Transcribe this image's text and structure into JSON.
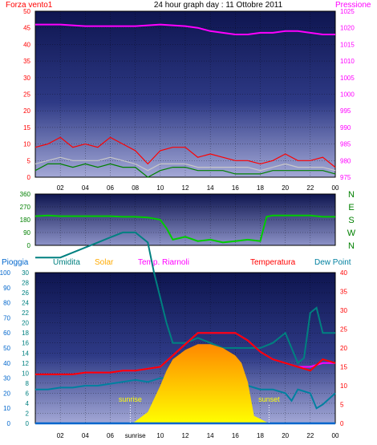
{
  "title": "24 hour graph day : 11 Ottobre 2011",
  "colors": {
    "wind": "#ff0000",
    "gust": "#ff0000",
    "wind_avg": "#c8c8c8",
    "wind_low": "#008000",
    "pressure": "#ff00ff",
    "direction": "#00cc00",
    "rain": "#0066cc",
    "humidity": "#008080",
    "solar": "#ffaa00",
    "apparent": "#ff00ff",
    "temperature": "#ff0000",
    "dewpoint": "#0080a0",
    "grid": "#000000"
  },
  "chart_data": [
    {
      "type": "line",
      "left_label": "Forza vento1",
      "right_label": "Pressione",
      "x_ticks": [
        "02",
        "04",
        "06",
        "08",
        "10",
        "12",
        "14",
        "16",
        "18",
        "20",
        "22",
        "00"
      ],
      "left_ticks": [
        "0",
        "5",
        "10",
        "15",
        "20",
        "25",
        "30",
        "35",
        "40",
        "45",
        "50"
      ],
      "right_ticks": [
        "975",
        "980",
        "985",
        "990",
        "995",
        "1000",
        "1005",
        "1010",
        "1015",
        "1020",
        "1025"
      ],
      "left_ylim": [
        0,
        50
      ],
      "right_ylim": [
        975,
        1025
      ],
      "series": [
        {
          "key": "pressure",
          "x": [
            0,
            2,
            4,
            6,
            8,
            10,
            12,
            13,
            14,
            15,
            16,
            17,
            18,
            19,
            20,
            21,
            22,
            23,
            24
          ],
          "values": [
            1021,
            1021,
            1020.5,
            1020.5,
            1020.5,
            1021,
            1020.5,
            1020,
            1019,
            1018.5,
            1018,
            1018,
            1018.5,
            1018.5,
            1019,
            1019,
            1018.5,
            1018,
            1018
          ]
        },
        {
          "key": "gust",
          "x": [
            0,
            1,
            2,
            3,
            4,
            5,
            6,
            7,
            8,
            9,
            10,
            11,
            12,
            13,
            14,
            15,
            16,
            17,
            18,
            19,
            20,
            21,
            22,
            23,
            24
          ],
          "values": [
            9,
            10,
            12,
            9,
            10,
            9,
            12,
            10,
            8,
            4,
            8,
            9,
            9,
            6,
            7,
            6,
            5,
            5,
            4,
            5,
            7,
            5,
            5,
            6,
            3
          ]
        },
        {
          "key": "wind_avg",
          "x": [
            0,
            1,
            2,
            3,
            4,
            5,
            6,
            7,
            8,
            9,
            10,
            11,
            12,
            13,
            14,
            15,
            16,
            17,
            18,
            19,
            20,
            21,
            22,
            23,
            24
          ],
          "values": [
            4,
            5,
            6,
            5,
            5,
            5,
            6,
            5,
            4,
            2,
            4,
            4,
            4,
            3,
            3,
            3,
            3,
            3,
            2,
            3,
            4,
            3,
            3,
            3,
            2
          ]
        },
        {
          "key": "wind_low",
          "x": [
            0,
            1,
            2,
            3,
            4,
            5,
            6,
            7,
            8,
            9,
            10,
            11,
            12,
            13,
            14,
            15,
            16,
            17,
            18,
            19,
            20,
            21,
            22,
            23,
            24
          ],
          "values": [
            2,
            4,
            4,
            3,
            4,
            3,
            4,
            3,
            3,
            0,
            2,
            3,
            3,
            2,
            2,
            2,
            1,
            1,
            1,
            2,
            2,
            2,
            2,
            2,
            1
          ]
        }
      ]
    },
    {
      "type": "line",
      "left_ticks": [
        "0",
        "90",
        "180",
        "270",
        "360"
      ],
      "right_ticks": [
        "N",
        "W",
        "S",
        "E",
        "N"
      ],
      "ylim": [
        0,
        360
      ],
      "series": [
        {
          "key": "direction",
          "x": [
            0,
            1,
            2,
            3,
            4,
            5,
            6,
            7,
            8,
            9,
            10,
            10.5,
            11,
            11.5,
            12,
            13,
            14,
            15,
            16,
            17,
            18,
            18.5,
            19,
            20,
            21,
            22,
            23,
            24
          ],
          "values": [
            205,
            210,
            205,
            205,
            205,
            205,
            205,
            200,
            200,
            195,
            180,
            120,
            40,
            50,
            60,
            30,
            40,
            20,
            30,
            40,
            30,
            200,
            210,
            210,
            210,
            210,
            200,
            200
          ]
        }
      ]
    },
    {
      "type": "line",
      "legend": [
        "Pioggia",
        "Umidita",
        "Solar",
        "Temp. Riarnoli",
        "Temperatura",
        "Dew Point"
      ],
      "x_ticks": [
        "02",
        "04",
        "06",
        "sunrise",
        "10",
        "12",
        "14",
        "16",
        "18",
        "20",
        "22",
        "00"
      ],
      "rain_ticks": [
        "0",
        "10",
        "20",
        "30",
        "40",
        "50",
        "60",
        "70",
        "80",
        "90",
        "100"
      ],
      "humidity_ticks": [
        "0",
        "2",
        "4",
        "6",
        "8",
        "10",
        "12",
        "14",
        "16",
        "18",
        "20",
        "22",
        "24",
        "26",
        "28",
        "30"
      ],
      "temp_ticks": [
        "0",
        "5",
        "10",
        "15",
        "20",
        "25",
        "30",
        "35",
        "40"
      ],
      "annotations": [
        "sunrise",
        "sunset"
      ],
      "sunrise_hour": 7.6,
      "sunset_hour": 18.7,
      "rain_ylim": [
        0,
        100
      ],
      "humidity_ylim": [
        0,
        30
      ],
      "temp_ylim": [
        0,
        40
      ],
      "series": [
        {
          "key": "humidity",
          "x": [
            0,
            1,
            2,
            3,
            4,
            5,
            6,
            7,
            8,
            9,
            9.5,
            10,
            10.5,
            11,
            12,
            13,
            14,
            15,
            16,
            17,
            18,
            19,
            19.5,
            20,
            21,
            21.5,
            22,
            22.5,
            23,
            24
          ],
          "values": [
            33,
            33,
            33,
            34,
            35,
            36,
            37,
            38,
            38,
            36,
            30,
            25,
            20,
            16,
            16,
            17,
            16,
            15,
            15,
            15,
            15,
            16,
            17,
            18,
            12,
            13,
            22,
            23,
            18,
            18
          ]
        },
        {
          "key": "dewpoint",
          "x": [
            0,
            1,
            2,
            3,
            4,
            5,
            6,
            7,
            8,
            9,
            10,
            11,
            12,
            13,
            14,
            15,
            16,
            17,
            18,
            19,
            20,
            20.5,
            21,
            22,
            22.5,
            23,
            24
          ],
          "values": [
            9,
            9,
            9.5,
            9.5,
            10,
            10,
            10.5,
            11,
            11.5,
            11,
            12,
            12,
            12,
            12,
            12,
            11,
            11,
            10,
            9,
            9,
            8,
            6,
            9,
            8,
            4,
            5,
            8
          ]
        },
        {
          "key": "solar",
          "x": [
            0,
            7.6,
            7.9,
            8.2,
            9,
            10,
            10.5,
            11,
            12,
            13,
            14,
            15,
            16,
            16.5,
            17,
            17.5,
            18.7,
            24
          ],
          "values": [
            0,
            0,
            0.3,
            1,
            3,
            10,
            14,
            17,
            19.5,
            21,
            21,
            20,
            18,
            16,
            11,
            2,
            0,
            0
          ]
        },
        {
          "key": "apparent",
          "x": [
            0,
            1,
            2,
            3,
            4,
            5,
            6,
            7,
            8,
            9,
            10,
            11,
            12,
            13,
            14,
            15,
            16,
            17,
            18,
            19,
            20,
            21,
            22,
            23,
            24
          ],
          "values": [
            13,
            13,
            13,
            13,
            13.5,
            13.5,
            13.5,
            14,
            14,
            14.5,
            15,
            18,
            21,
            24,
            24,
            24,
            24,
            22,
            19,
            17,
            16,
            15,
            15,
            16,
            16
          ]
        },
        {
          "key": "temperature",
          "x": [
            0,
            1,
            2,
            3,
            4,
            5,
            6,
            7,
            8,
            9,
            10,
            11,
            12,
            13,
            14,
            15,
            16,
            17,
            18,
            19,
            20,
            21,
            22,
            23,
            24
          ],
          "values": [
            13,
            13,
            13,
            13,
            13.5,
            13.5,
            13.5,
            14,
            14,
            14.5,
            15,
            18,
            21,
            24,
            24,
            24,
            24,
            22,
            19,
            17,
            16,
            15,
            14,
            17,
            16
          ]
        },
        {
          "key": "rain",
          "x": [
            0,
            24
          ],
          "values": [
            0,
            0
          ]
        }
      ]
    }
  ]
}
